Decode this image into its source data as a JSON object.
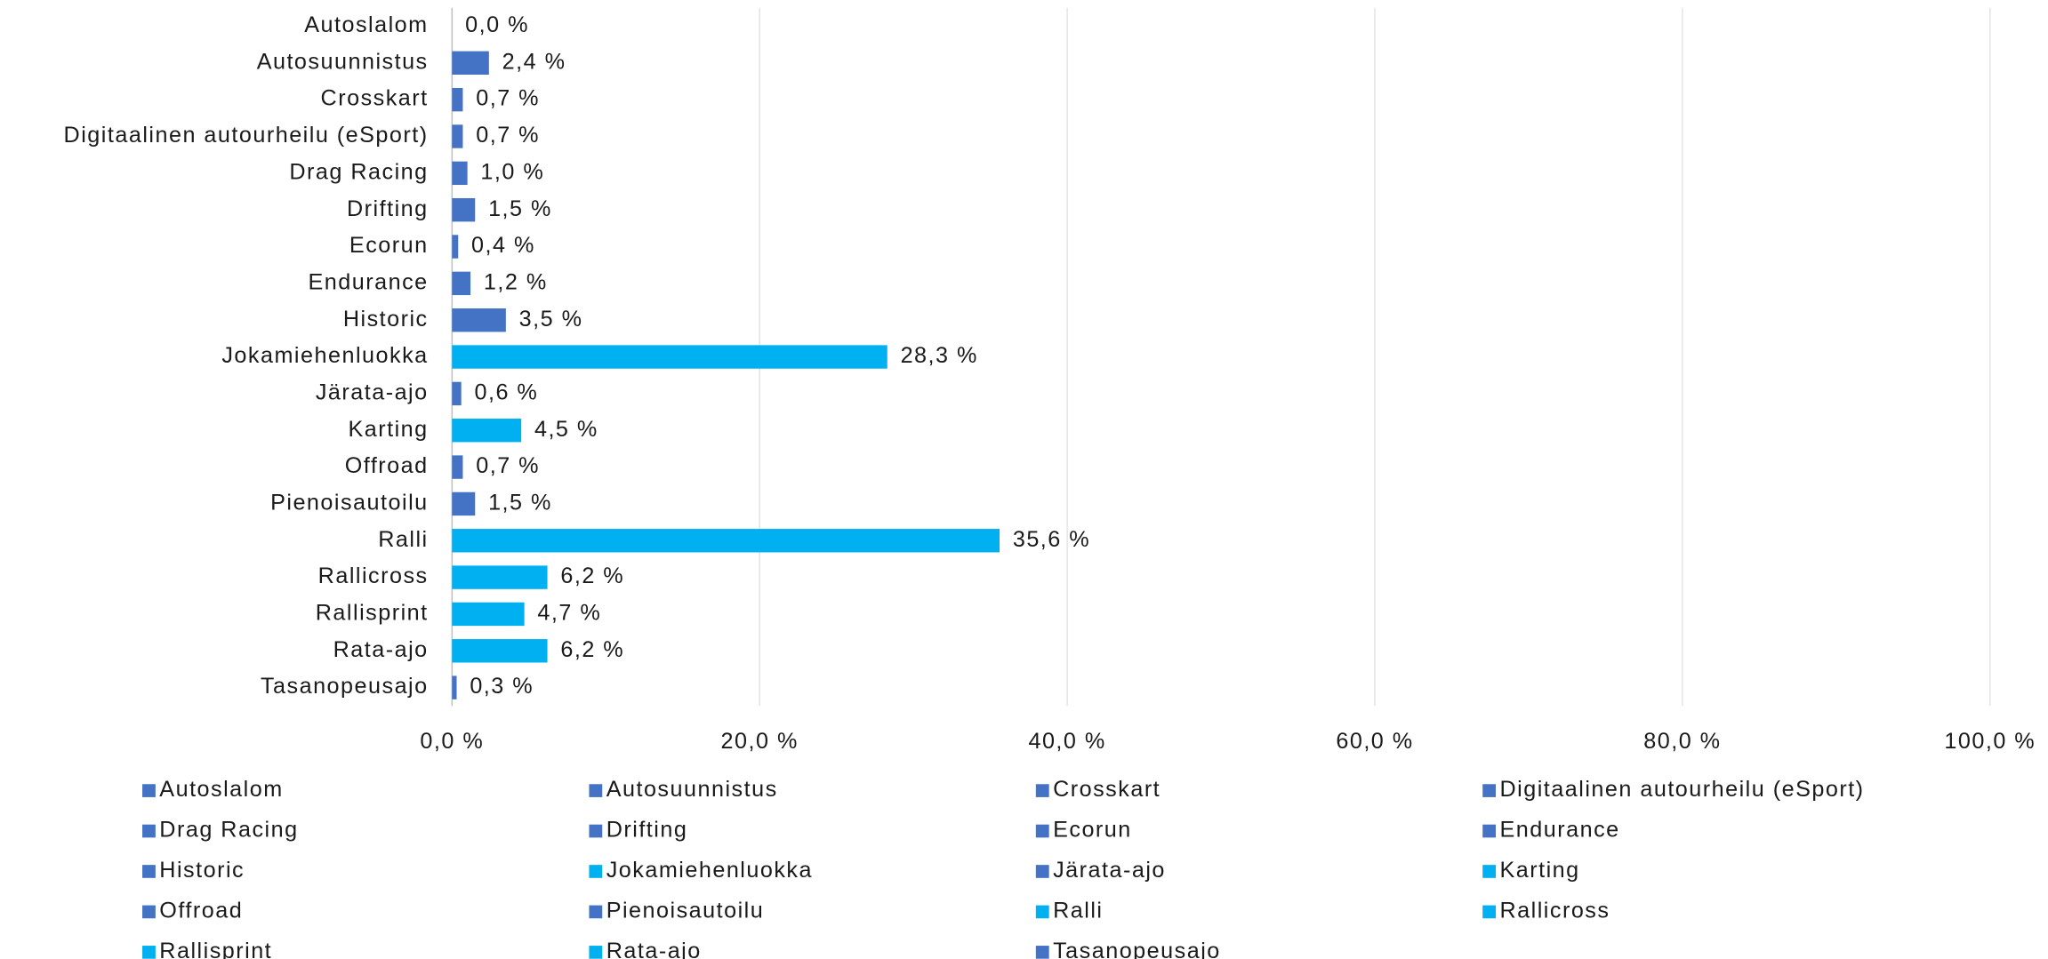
{
  "chart_data": {
    "type": "hbar",
    "categories": [
      "Autoslalom",
      "Autosuunnistus",
      "Crosskart",
      "Digitaalinen autourheilu (eSport)",
      "Drag Racing",
      "Drifting",
      "Ecorun",
      "Endurance",
      "Historic",
      "Jokamiehenluokka",
      "Järata-ajo",
      "Karting",
      "Offroad",
      "Pienoisautoilu",
      "Ralli",
      "Rallicross",
      "Rallisprint",
      "Rata-ajo",
      "Tasanopeusajo"
    ],
    "values": [
      0.0,
      2.4,
      0.7,
      0.7,
      1.0,
      1.5,
      0.4,
      1.2,
      3.5,
      28.3,
      0.6,
      4.5,
      0.7,
      1.5,
      35.6,
      6.2,
      4.7,
      6.2,
      0.3
    ],
    "value_labels": [
      "0,0 %",
      "2,4 %",
      "0,7 %",
      "0,7 %",
      "1,0 %",
      "1,5 %",
      "0,4 %",
      "1,2 %",
      "3,5 %",
      "28,3 %",
      "0,6 %",
      "4,5 %",
      "0,7 %",
      "1,5 %",
      "35,6 %",
      "6,2 %",
      "4,7 %",
      "6,2 %",
      "0,3 %"
    ],
    "colors": [
      "#4472c4",
      "#4472c4",
      "#4472c4",
      "#4472c4",
      "#4472c4",
      "#4472c4",
      "#4472c4",
      "#4472c4",
      "#4472c4",
      "#00b0f0",
      "#4472c4",
      "#00b0f0",
      "#4472c4",
      "#4472c4",
      "#00b0f0",
      "#00b0f0",
      "#00b0f0",
      "#00b0f0",
      "#4472c4"
    ],
    "xlim": [
      0,
      100
    ],
    "xticks": [
      {
        "value": 0,
        "label": "0,0 %"
      },
      {
        "value": 20,
        "label": "20,0 %"
      },
      {
        "value": 40,
        "label": "40,0 %"
      },
      {
        "value": 60,
        "label": "60,0 %"
      },
      {
        "value": 80,
        "label": "80,0 %"
      },
      {
        "value": 100,
        "label": "100,0 %"
      }
    ],
    "grid": true,
    "legend": "bottom"
  }
}
